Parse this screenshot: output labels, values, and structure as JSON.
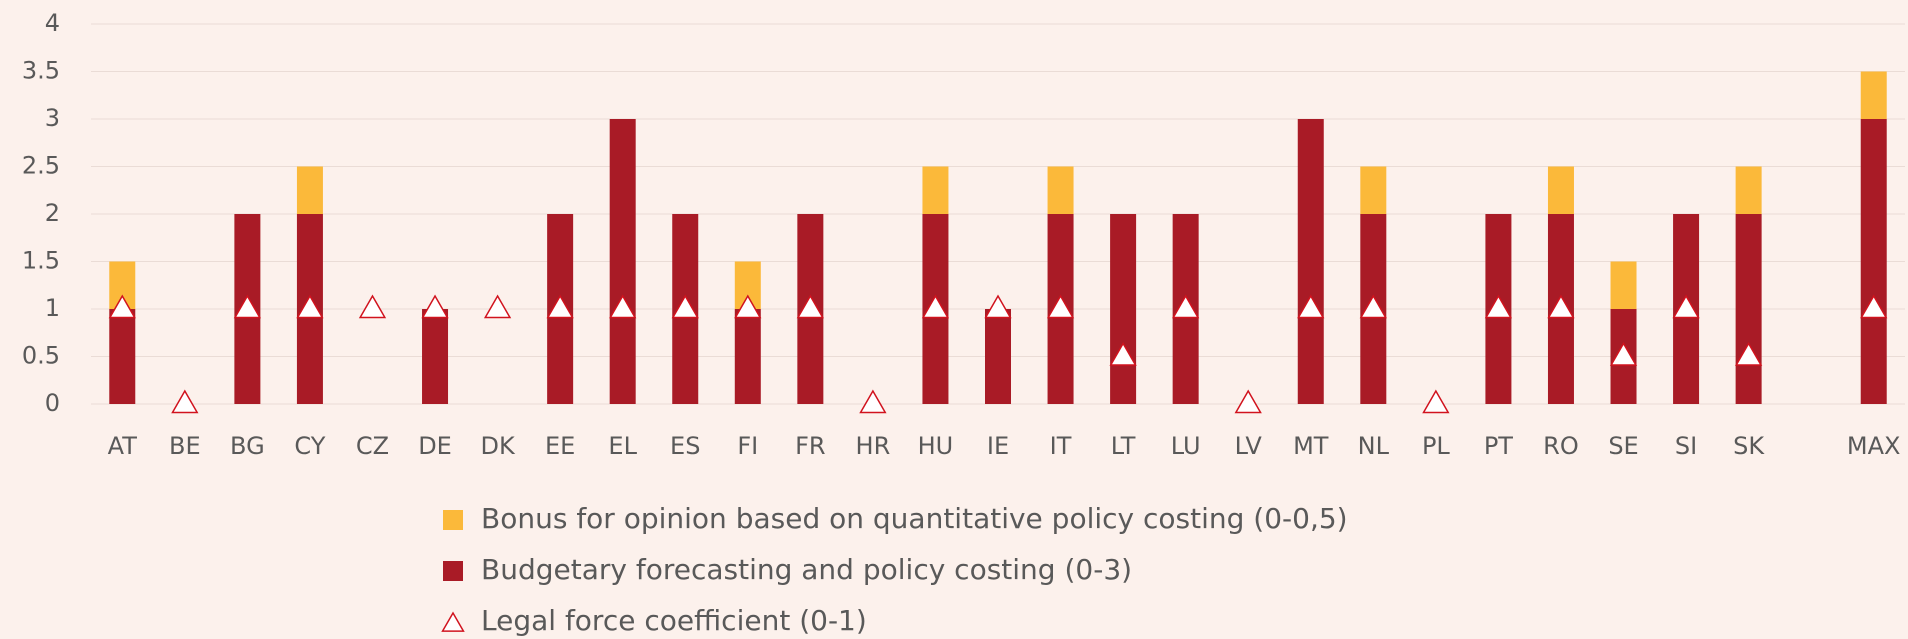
{
  "chart_data": {
    "type": "bar",
    "stacked": true,
    "categories": [
      "AT",
      "BE",
      "BG",
      "CY",
      "CZ",
      "DE",
      "DK",
      "EE",
      "EL",
      "ES",
      "FI",
      "FR",
      "HR",
      "HU",
      "IE",
      "IT",
      "LT",
      "LU",
      "LV",
      "MT",
      "NL",
      "PL",
      "PT",
      "RO",
      "SE",
      "SI",
      "SK",
      null,
      "MAX"
    ],
    "series": [
      {
        "name": "Budgetary forecasting and policy costing (0-3)",
        "color": "#a91b26",
        "type": "bar",
        "values": [
          1,
          0,
          2,
          2,
          0,
          1,
          0,
          2,
          3,
          2,
          1,
          2,
          0,
          2,
          1,
          2,
          2,
          2,
          0,
          3,
          2,
          0,
          2,
          2,
          1,
          2,
          2,
          null,
          3
        ]
      },
      {
        "name": "Bonus for opinion based on quantitative policy costing (0-0,5)",
        "color": "#fbb93a",
        "type": "bar",
        "values": [
          0.5,
          0,
          0,
          0.5,
          0,
          0,
          0,
          0,
          0,
          0,
          0.5,
          0,
          0,
          0.5,
          0,
          0.5,
          0,
          0,
          0,
          0,
          0.5,
          0,
          0,
          0.5,
          0.5,
          0,
          0.5,
          null,
          0.5
        ]
      },
      {
        "name": "Legal force coefficient (0-1)",
        "color": "#d1131e",
        "type": "scatter",
        "values": [
          1,
          0,
          1,
          1,
          1,
          1,
          1,
          1,
          1,
          1,
          1,
          1,
          0,
          1,
          1,
          1,
          0.5,
          1,
          0,
          1,
          1,
          0,
          1,
          1,
          0.5,
          1,
          0.5,
          null,
          1
        ]
      }
    ],
    "legend_order": [
      1,
      0,
      2
    ],
    "ylim": [
      0,
      4
    ],
    "yticks": [
      0,
      {
        "value": 0.5,
        "label": "0.5"
      },
      1,
      {
        "value": 1.5,
        "label": "1.5"
      },
      2,
      {
        "value": 2.5,
        "label": "2.5"
      },
      3,
      {
        "value": 3.5,
        "label": "3.5"
      },
      4
    ],
    "grid": true
  }
}
